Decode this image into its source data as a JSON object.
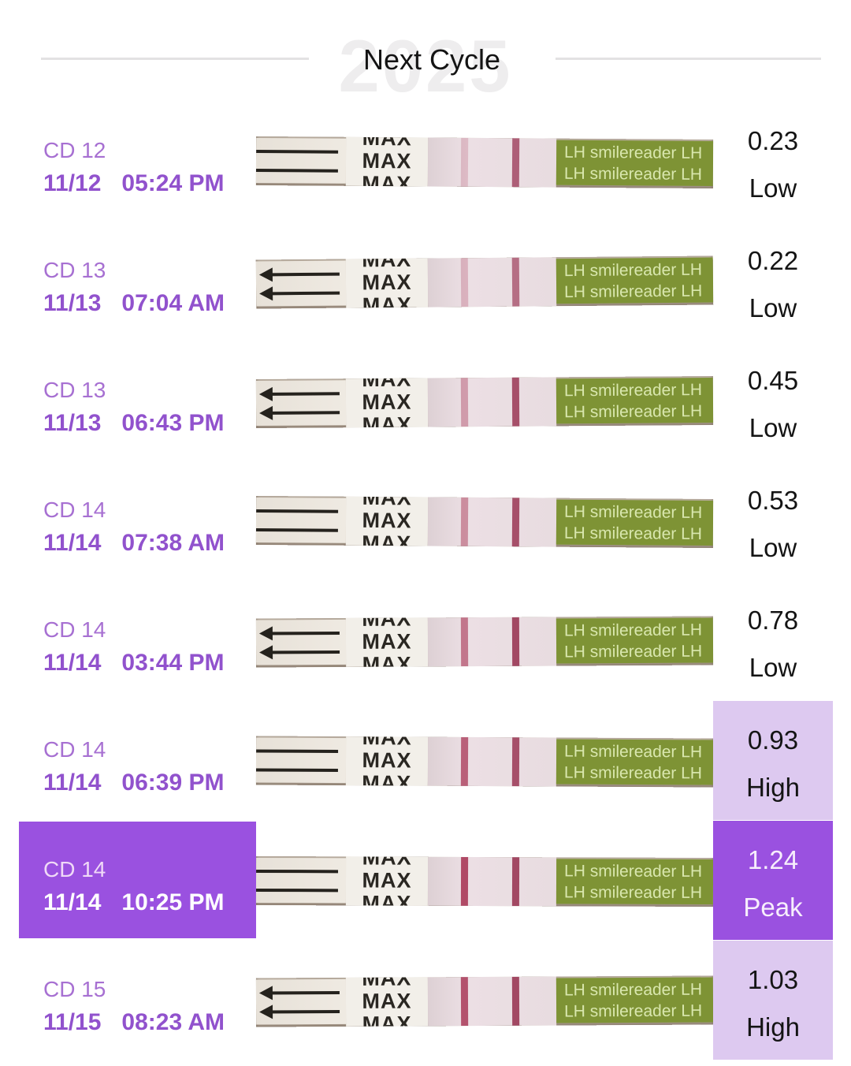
{
  "header": {
    "title": "Next Cycle",
    "watermark": "2025"
  },
  "strip": {
    "max_label": "MAX",
    "brand_label": "LH smilereader LH"
  },
  "colors": {
    "cd_text": "#a770d2",
    "date_text": "#9152cd",
    "highlight_purple": "#9a51e0",
    "highlight_light_purple": "#ddc9f0",
    "value_text": "#141414",
    "peak_text": "#f7eefc",
    "strip_beige": "#cbc0b2",
    "brand_green": "#7e9335",
    "line_red": "#a93a58"
  },
  "rows": [
    {
      "cd": "CD 12",
      "date": "11/12",
      "time": "05:24 PM",
      "value": "0.23",
      "level": "Low",
      "highlight": "none",
      "test_line": 0.25,
      "control_line": 0.8,
      "tilt": 0.4,
      "arrow_heads": false
    },
    {
      "cd": "CD 13",
      "date": "11/13",
      "time": "07:04 AM",
      "value": "0.22",
      "level": "Low",
      "highlight": "none",
      "test_line": 0.3,
      "control_line": 0.7,
      "tilt": -0.5,
      "arrow_heads": true
    },
    {
      "cd": "CD 13",
      "date": "11/13",
      "time": "06:43 PM",
      "value": "0.45",
      "level": "Low",
      "highlight": "none",
      "test_line": 0.45,
      "control_line": 0.9,
      "tilt": -0.4,
      "arrow_heads": true
    },
    {
      "cd": "CD 14",
      "date": "11/14",
      "time": "07:38 AM",
      "value": "0.53",
      "level": "Low",
      "highlight": "none",
      "test_line": 0.55,
      "control_line": 0.9,
      "tilt": 0.4,
      "arrow_heads": false
    },
    {
      "cd": "CD 14",
      "date": "11/14",
      "time": "03:44 PM",
      "value": "0.78",
      "level": "Low",
      "highlight": "none",
      "test_line": 0.7,
      "control_line": 0.95,
      "tilt": -0.3,
      "arrow_heads": true
    },
    {
      "cd": "CD 14",
      "date": "11/14",
      "time": "06:39 PM",
      "value": "0.93",
      "level": "High",
      "highlight": "value-light",
      "test_line": 0.85,
      "control_line": 0.9,
      "tilt": 0.3,
      "arrow_heads": false
    },
    {
      "cd": "CD 14",
      "date": "11/14",
      "time": "10:25 PM",
      "value": "1.24",
      "level": "Peak",
      "highlight": "peak",
      "test_line": 1.0,
      "control_line": 0.95,
      "tilt": 0.2,
      "arrow_heads": false
    },
    {
      "cd": "CD 15",
      "date": "11/15",
      "time": "08:23 AM",
      "value": "1.03",
      "level": "High",
      "highlight": "value-light",
      "test_line": 0.95,
      "control_line": 0.95,
      "tilt": -0.3,
      "arrow_heads": true
    }
  ]
}
